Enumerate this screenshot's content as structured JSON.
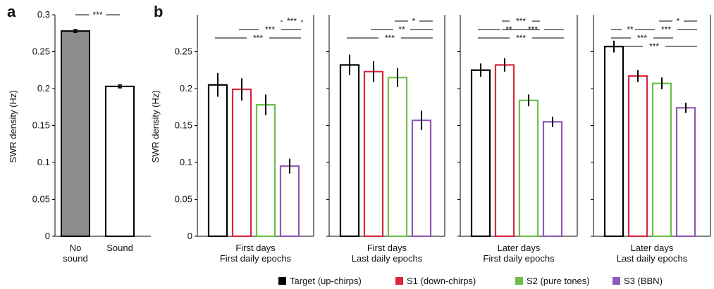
{
  "chart_data": [
    {
      "id": "a",
      "type": "bar",
      "panel_label": "a",
      "ylabel": "SWR density (Hz)",
      "ylim": [
        0,
        0.3
      ],
      "yticks": [
        "0",
        "0.05",
        "0.1",
        "0.15",
        "0.2",
        "0.25",
        "0.3"
      ],
      "categories": [
        [
          "No",
          "sound"
        ],
        [
          "Sound"
        ]
      ],
      "values": [
        0.278,
        0.203
      ],
      "errors": [
        0.002,
        0.002
      ],
      "fills": [
        "#8c8c8c",
        "#ffffff"
      ],
      "significance": [
        {
          "from": 0,
          "to": 1,
          "label": "***"
        }
      ]
    },
    {
      "id": "b",
      "type": "bar",
      "panel_label": "b",
      "ylabel": "SWR density (Hz)",
      "ylim": [
        0,
        0.3
      ],
      "yticks": [
        "0",
        "0.05",
        "0.1",
        "0.15",
        "0.2",
        "0.25"
      ],
      "legend": {
        "placement": "bottom",
        "items": [
          {
            "name": "Target (up-chirps)",
            "color": "#000000"
          },
          {
            "name": "S1 (down-chirps)",
            "color": "#d7263d"
          },
          {
            "name": "S2 (pure tones)",
            "color": "#6cc04a"
          },
          {
            "name": "S3 (BBN)",
            "color": "#8e5ab5"
          }
        ]
      },
      "groups": [
        {
          "label": [
            "First days",
            "First daily epochs"
          ],
          "values": [
            0.205,
            0.199,
            0.178,
            0.095
          ],
          "errors": [
            0.016,
            0.015,
            0.014,
            0.01
          ],
          "significance": [
            {
              "from": 3,
              "to": 3,
              "label": "***",
              "level": 0
            },
            {
              "from": 1,
              "to": 3,
              "label": "***",
              "level": 1
            },
            {
              "from": 0,
              "to": 3,
              "label": "***",
              "level": 2
            }
          ]
        },
        {
          "label": [
            "First days",
            "Last daily epochs"
          ],
          "values": [
            0.232,
            0.223,
            0.215,
            0.157
          ],
          "errors": [
            0.014,
            0.014,
            0.013,
            0.013
          ],
          "significance": [
            {
              "from": 2,
              "to": 3,
              "label": "*",
              "level": 0
            },
            {
              "from": 1,
              "to": 3,
              "label": "**",
              "level": 1
            },
            {
              "from": 0,
              "to": 3,
              "label": "***",
              "level": 2
            }
          ]
        },
        {
          "label": [
            "Later days",
            "First daily epochs"
          ],
          "values": [
            0.225,
            0.232,
            0.184,
            0.155
          ],
          "errors": [
            0.009,
            0.009,
            0.008,
            0.007
          ],
          "significance": [
            {
              "from": 1,
              "to": 2,
              "label": "***",
              "level": 0
            },
            {
              "from": 1,
              "to": 3,
              "label": "***",
              "level": 1
            },
            {
              "from": 0,
              "to": 2,
              "label": "**",
              "level": 1
            },
            {
              "from": 0,
              "to": 3,
              "label": "***",
              "level": 2
            }
          ]
        },
        {
          "label": [
            "Later days",
            "Last daily epochs"
          ],
          "values": [
            0.257,
            0.217,
            0.207,
            0.174
          ],
          "errors": [
            0.008,
            0.008,
            0.008,
            0.007
          ],
          "significance": [
            {
              "from": 2,
              "to": 3,
              "label": "*",
              "level": 0
            },
            {
              "from": 1,
              "to": 3,
              "label": "***",
              "level": 1
            },
            {
              "from": 0,
              "to": 1,
              "label": "**",
              "level": 1
            },
            {
              "from": 0,
              "to": 2,
              "label": "***",
              "level": 2
            },
            {
              "from": 0,
              "to": 3,
              "label": "***",
              "level": 3
            }
          ]
        }
      ]
    }
  ]
}
